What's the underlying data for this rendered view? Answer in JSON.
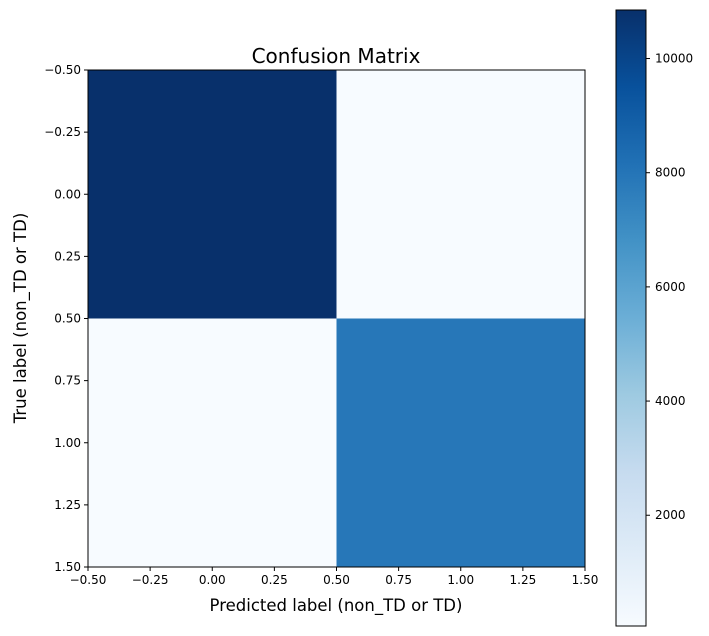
{
  "chart_data": {
    "type": "heatmap",
    "title": "Confusion Matrix",
    "xlabel": "Predicted label (non_TD or TD)",
    "ylabel": "True label (non_TD or TD)",
    "xlim": [
      -0.5,
      1.5
    ],
    "ylim": [
      1.5,
      -0.5
    ],
    "x_ticks": [
      -0.5,
      -0.25,
      0.0,
      0.25,
      0.5,
      0.75,
      1.0,
      1.25,
      1.5
    ],
    "x_tick_labels": [
      "−0.50",
      "−0.25",
      "0.00",
      "0.25",
      "0.50",
      "0.75",
      "1.00",
      "1.25",
      "1.50"
    ],
    "y_ticks": [
      -0.5,
      -0.25,
      0.0,
      0.25,
      0.5,
      0.75,
      1.0,
      1.25,
      1.5
    ],
    "y_tick_labels": [
      "−0.50",
      "−0.25",
      "0.00",
      "0.25",
      "0.50",
      "0.75",
      "1.00",
      "1.25",
      "1.50"
    ],
    "matrix": [
      [
        10850,
        60
      ],
      [
        60,
        7900
      ]
    ],
    "colormap": "Blues",
    "colorbar": {
      "range": [
        60,
        10850
      ],
      "ticks": [
        2000,
        4000,
        6000,
        8000,
        10000
      ],
      "tick_labels": [
        "2000",
        "4000",
        "6000",
        "8000",
        "10000"
      ]
    },
    "grid": false
  }
}
